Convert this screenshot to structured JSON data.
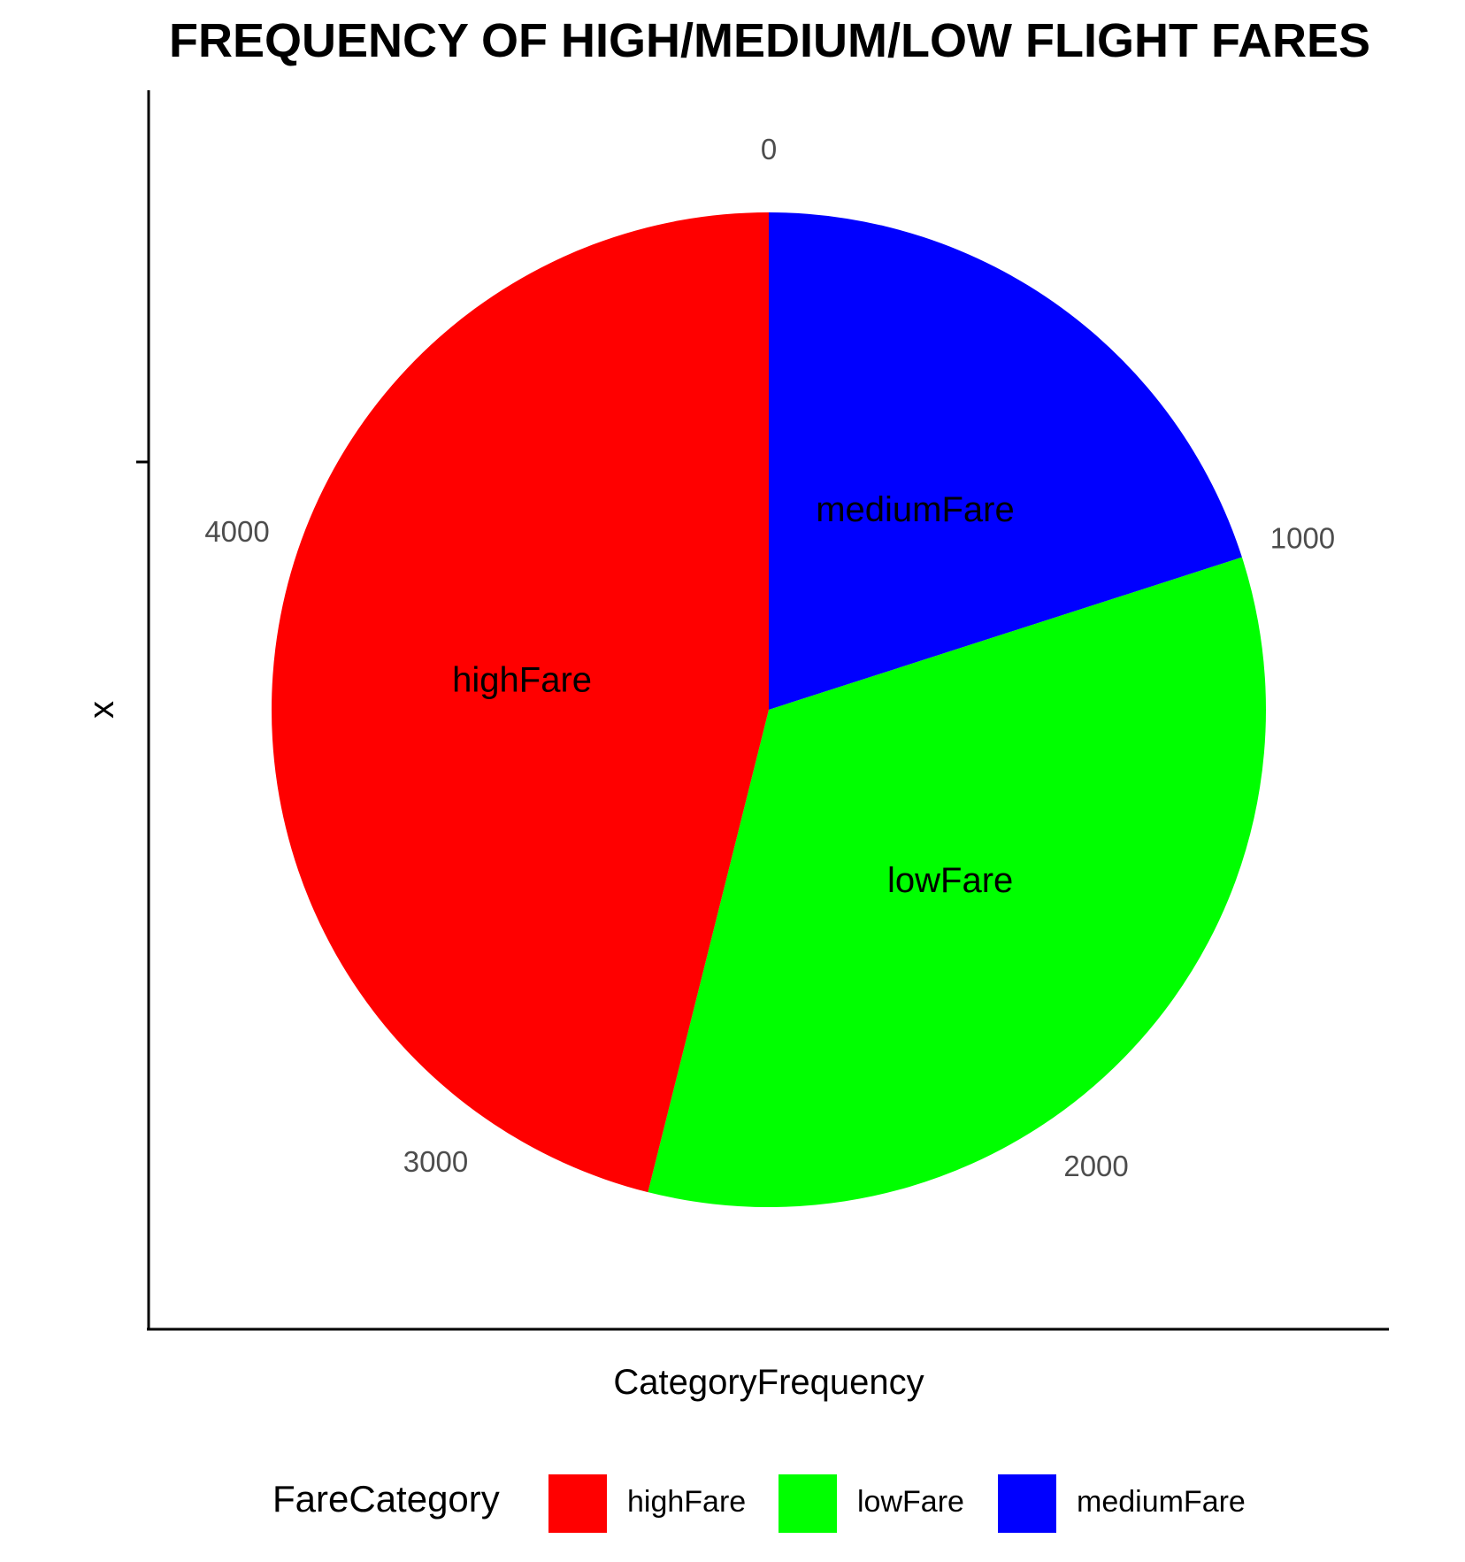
{
  "chart_data": {
    "type": "pie",
    "title": "FREQUENCY OF HIGH/MEDIUM/LOW FLIGHT FARES",
    "xlabel": "CategoryFrequency",
    "ylabel": "x",
    "slices": [
      {
        "name": "mediumFare",
        "value": 1000,
        "color": "#0000FF"
      },
      {
        "name": "lowFare",
        "value": 1690,
        "color": "#00FF00"
      },
      {
        "name": "highFare",
        "value": 2300,
        "color": "#FF0000"
      }
    ],
    "theta_ticks": [
      "0",
      "1000",
      "2000",
      "3000",
      "4000"
    ],
    "theta_tick_values": [
      0,
      1000,
      2000,
      3000,
      4000
    ],
    "legend": {
      "title": "FareCategory",
      "position": "bottom",
      "items": [
        {
          "label": "highFare",
          "color": "#FF0000"
        },
        {
          "label": "lowFare",
          "color": "#00FF00"
        },
        {
          "label": "mediumFare",
          "color": "#0000FF"
        }
      ]
    },
    "grid": false
  }
}
